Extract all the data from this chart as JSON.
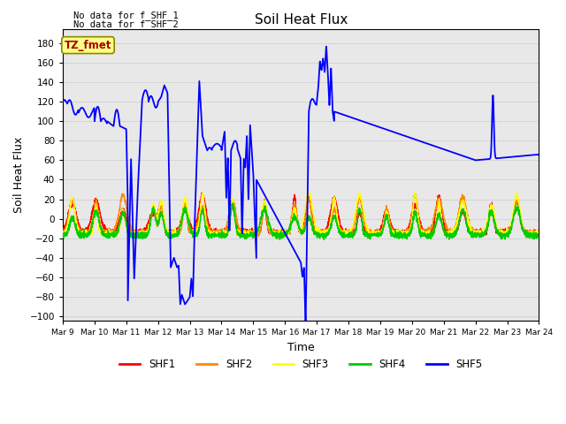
{
  "title": "Soil Heat Flux",
  "xlabel": "Time",
  "ylabel": "Soil Heat Flux",
  "yticks": [
    -100,
    -80,
    -60,
    -40,
    -20,
    0,
    20,
    40,
    60,
    80,
    100,
    120,
    140,
    160,
    180
  ],
  "annotation1": "No data for f_SHF_1",
  "annotation2": "No data for f_SHF_2",
  "tz_label": "TZ_fmet",
  "legend_entries": [
    "SHF1",
    "SHF2",
    "SHF3",
    "SHF4",
    "SHF5"
  ],
  "legend_colors": [
    "#ff0000",
    "#ff8800",
    "#ffff00",
    "#00cc00",
    "#0000ff"
  ],
  "line_colors": {
    "SHF1": "#ff0000",
    "SHF2": "#ff8800",
    "SHF3": "#ffff00",
    "SHF4": "#00cc00",
    "SHF5": "#0000ff"
  },
  "bg_color": "#e8e8e8",
  "grid_color": "#cccccc"
}
